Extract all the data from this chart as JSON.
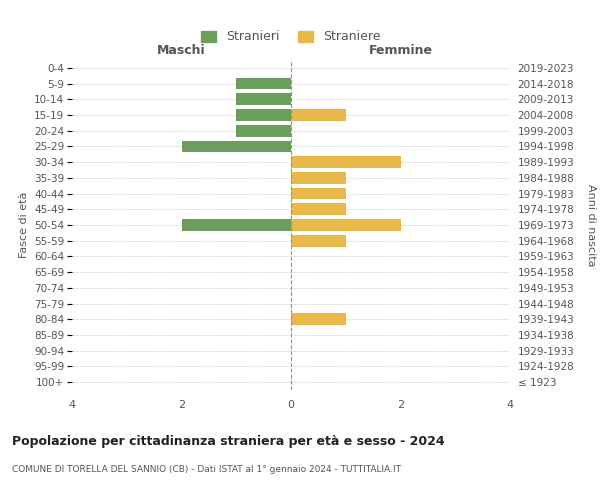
{
  "age_groups": [
    "100+",
    "95-99",
    "90-94",
    "85-89",
    "80-84",
    "75-79",
    "70-74",
    "65-69",
    "60-64",
    "55-59",
    "50-54",
    "45-49",
    "40-44",
    "35-39",
    "30-34",
    "25-29",
    "20-24",
    "15-19",
    "10-14",
    "5-9",
    "0-4"
  ],
  "birth_years": [
    "≤ 1923",
    "1924-1928",
    "1929-1933",
    "1934-1938",
    "1939-1943",
    "1944-1948",
    "1949-1953",
    "1954-1958",
    "1959-1963",
    "1964-1968",
    "1969-1973",
    "1974-1978",
    "1979-1983",
    "1984-1988",
    "1989-1993",
    "1994-1998",
    "1999-2003",
    "2004-2008",
    "2009-2013",
    "2014-2018",
    "2019-2023"
  ],
  "maschi": [
    0,
    0,
    0,
    0,
    0,
    0,
    0,
    0,
    0,
    0,
    -2,
    0,
    0,
    0,
    0,
    -2,
    -1,
    -1,
    -1,
    -1,
    0
  ],
  "femmine": [
    0,
    0,
    0,
    0,
    1,
    0,
    0,
    0,
    0,
    1,
    2,
    1,
    1,
    1,
    2,
    0,
    0,
    1,
    0,
    0,
    0
  ],
  "male_color": "#6b9e5e",
  "female_color": "#e8b84b",
  "background_color": "#ffffff",
  "grid_color": "#d0d0d0",
  "title": "Popolazione per cittadinanza straniera per età e sesso - 2024",
  "subtitle": "COMUNE DI TORELLA DEL SANNIO (CB) - Dati ISTAT al 1° gennaio 2024 - TUTTITALIA.IT",
  "ylabel_left": "Fasce di età",
  "ylabel_right": "Anni di nascita",
  "xlabel_maschi": "Maschi",
  "xlabel_femmine": "Femmine",
  "legend_male": "Stranieri",
  "legend_female": "Straniere",
  "xlim": [
    -4,
    4
  ],
  "bar_height": 0.75
}
